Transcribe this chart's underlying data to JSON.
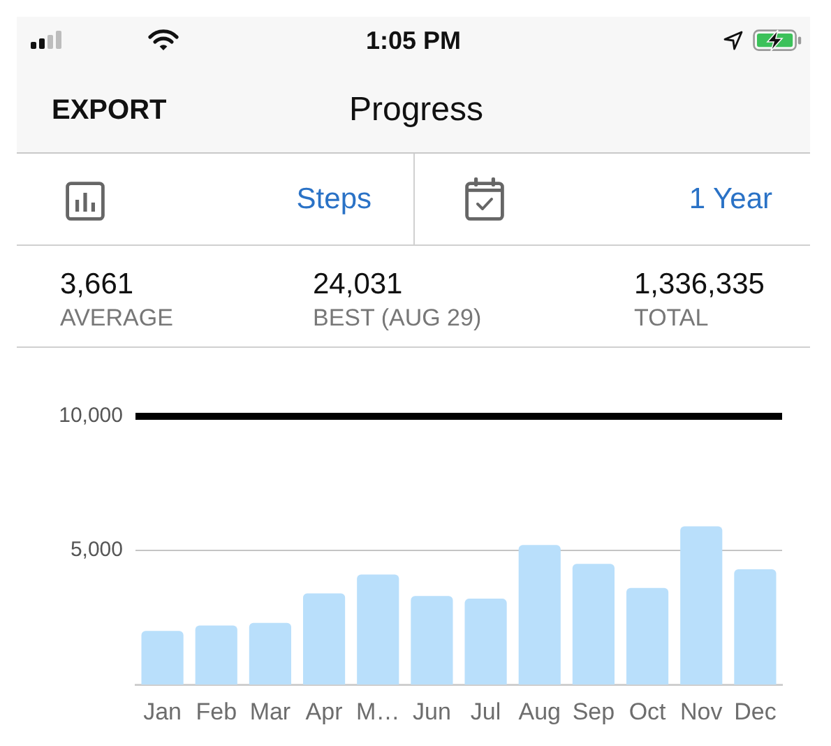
{
  "chart_data": {
    "type": "bar",
    "title": "Progress",
    "annotations": [
      "1:05 PM",
      "EXPORT",
      "Steps",
      "1 Year",
      "3,661",
      "AVERAGE",
      "24,031",
      "BEST (AUG 29)",
      "1,336,335",
      "TOTAL"
    ],
    "categories": [
      "Jan",
      "Feb",
      "Mar",
      "Apr",
      "M…",
      "Jun",
      "Jul",
      "Aug",
      "Sep",
      "Oct",
      "Nov",
      "Dec"
    ],
    "values": [
      2000,
      2200,
      2300,
      3400,
      4100,
      3300,
      3200,
      5200,
      4500,
      3600,
      5900,
      4300
    ],
    "color": "#b9dffb",
    "ylim": [
      0,
      10000
    ],
    "yticks": [
      {
        "value": 5000,
        "label": "5,000"
      },
      {
        "value": 10000,
        "label": "10,000"
      }
    ],
    "ref_lines": [
      {
        "axis": "y",
        "value": 10000,
        "color": "#000000"
      }
    ],
    "grid": "y",
    "legend": false
  }
}
